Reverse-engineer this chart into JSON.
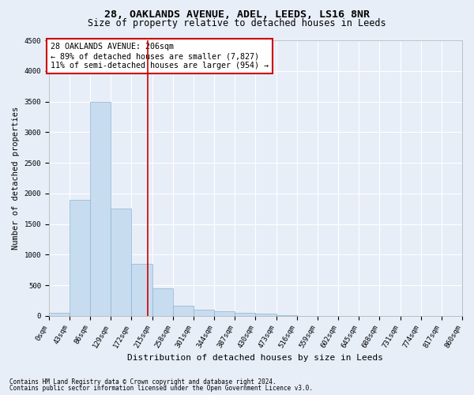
{
  "title1": "28, OAKLANDS AVENUE, ADEL, LEEDS, LS16 8NR",
  "title2": "Size of property relative to detached houses in Leeds",
  "xlabel": "Distribution of detached houses by size in Leeds",
  "ylabel": "Number of detached properties",
  "footnote1": "Contains HM Land Registry data © Crown copyright and database right 2024.",
  "footnote2": "Contains public sector information licensed under the Open Government Licence v3.0.",
  "annotation_title": "28 OAKLANDS AVENUE: 206sqm",
  "annotation_line1": "← 89% of detached houses are smaller (7,827)",
  "annotation_line2": "11% of semi-detached houses are larger (954) →",
  "property_size": 206,
  "bin_edges": [
    0,
    43,
    86,
    129,
    172,
    215,
    258,
    301,
    344,
    387,
    430,
    473,
    516,
    559,
    602,
    645,
    688,
    731,
    774,
    817,
    860
  ],
  "bar_heights": [
    50,
    1900,
    3500,
    1750,
    850,
    450,
    160,
    100,
    75,
    55,
    30,
    5,
    3,
    2,
    1,
    0,
    0,
    0,
    0,
    0
  ],
  "bar_color": "#c8dcef",
  "bar_edge_color": "#8ab4d4",
  "vline_color": "#cc0000",
  "vline_x": 206,
  "background_color": "#e8eef8",
  "annotation_box_color": "#ffffff",
  "annotation_box_edge": "#cc0000",
  "ylim": [
    0,
    4500
  ],
  "yticks": [
    0,
    500,
    1000,
    1500,
    2000,
    2500,
    3000,
    3500,
    4000,
    4500
  ],
  "title1_fontsize": 9.5,
  "title2_fontsize": 8.5,
  "xlabel_fontsize": 8,
  "ylabel_fontsize": 7.5,
  "tick_fontsize": 6.5,
  "annotation_fontsize": 7.2,
  "footnote_fontsize": 5.5
}
